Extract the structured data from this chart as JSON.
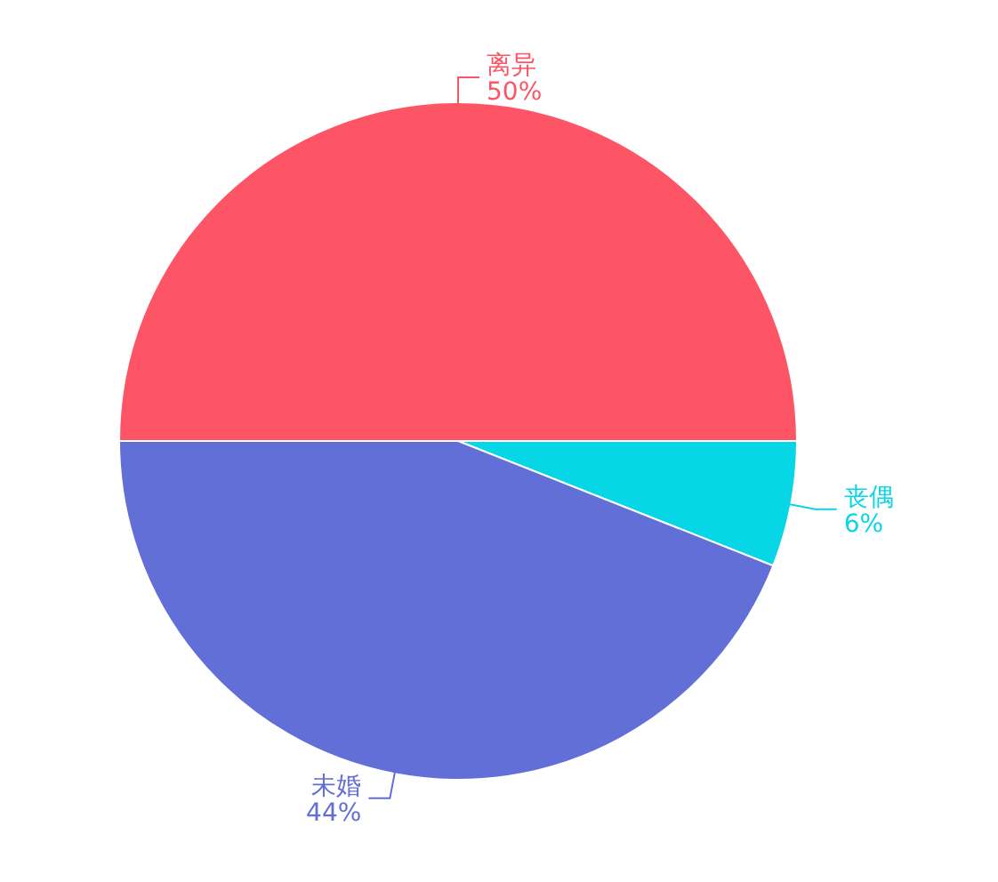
{
  "chart_data": {
    "type": "pie",
    "categories": [
      "离异",
      "丧偶",
      "未婚"
    ],
    "values": [
      50,
      6,
      44
    ],
    "value_labels": [
      "50%",
      "6%",
      "44%"
    ],
    "colors": [
      "#fd5565",
      "#07d6e6",
      "#626fd6"
    ],
    "legend": false
  }
}
